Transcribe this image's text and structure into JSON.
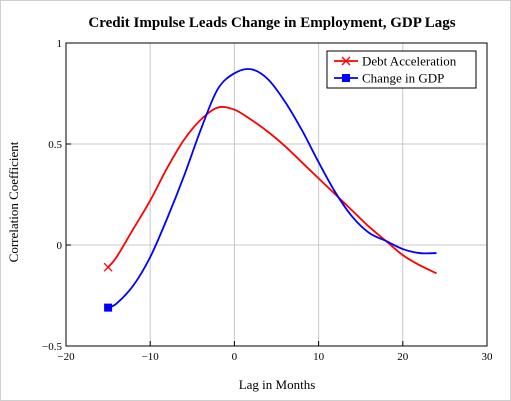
{
  "chart_data": {
    "type": "line",
    "title": "Credit Impulse Leads Change in Employment, GDP Lags",
    "xlabel": "Lag in Months",
    "ylabel": "Correlation Coefficient",
    "xlim": [
      -20,
      30
    ],
    "ylim": [
      -0.5,
      1
    ],
    "x_ticks": [
      -20,
      -10,
      0,
      10,
      20,
      30
    ],
    "x_tick_labels": [
      "−20",
      "−10",
      "0",
      "10",
      "20",
      "30"
    ],
    "y_ticks": [
      -0.5,
      0,
      0.5,
      1
    ],
    "y_tick_labels": [
      "−0.5",
      "0",
      "0.5",
      "1"
    ],
    "grid": true,
    "legend_position": "top-right",
    "series": [
      {
        "name": "Debt Acceleration",
        "color": "#ff0000",
        "marker": "x",
        "x": [
          -15,
          -14,
          -12,
          -10,
          -8,
          -6,
          -4,
          -2,
          0,
          2,
          4,
          6,
          8,
          10,
          12,
          14,
          16,
          18,
          20,
          22,
          24
        ],
        "y": [
          -0.11,
          -0.06,
          0.08,
          0.22,
          0.38,
          0.52,
          0.62,
          0.68,
          0.67,
          0.62,
          0.56,
          0.49,
          0.41,
          0.33,
          0.25,
          0.17,
          0.09,
          0.02,
          -0.05,
          -0.1,
          -0.14
        ]
      },
      {
        "name": "Change in GDP",
        "color": "#0000ff",
        "marker": "square",
        "x": [
          -15,
          -14,
          -12,
          -10,
          -8,
          -6,
          -4,
          -2,
          0,
          2,
          4,
          6,
          8,
          10,
          12,
          14,
          16,
          18,
          20,
          22,
          24
        ],
        "y": [
          -0.31,
          -0.29,
          -0.2,
          -0.06,
          0.13,
          0.34,
          0.57,
          0.77,
          0.85,
          0.87,
          0.82,
          0.71,
          0.57,
          0.41,
          0.26,
          0.14,
          0.06,
          0.02,
          -0.02,
          -0.04,
          -0.04
        ]
      }
    ]
  }
}
